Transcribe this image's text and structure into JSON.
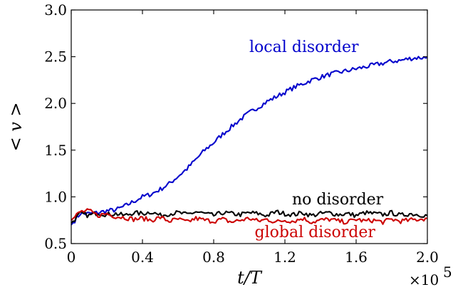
{
  "chart_data": {
    "type": "line",
    "xlabel": "t/T",
    "ylabel": "< v >",
    "x_multiplier_label": "×10",
    "x_multiplier_exp": "5",
    "xlim": [
      0,
      2.0
    ],
    "ylim": [
      0.5,
      3.0
    ],
    "xticks": [
      0,
      0.4,
      0.8,
      1.2,
      1.6,
      2.0
    ],
    "xtick_labels": [
      "0",
      "0.4",
      "0.8",
      "1.2",
      "1.6",
      "2.0"
    ],
    "yticks": [
      0.5,
      1.0,
      1.5,
      2.0,
      2.5,
      3.0
    ],
    "ytick_labels": [
      "0.5",
      "1.0",
      "1.5",
      "2.0",
      "2.5",
      "3.0"
    ],
    "grid": false,
    "legend": "inline labels",
    "series": [
      {
        "name": "local disorder",
        "color": "#0000cc",
        "label_anchor": [
          1.0,
          2.55
        ],
        "x": [
          0,
          0.05,
          0.1,
          0.15,
          0.2,
          0.25,
          0.3,
          0.35,
          0.4,
          0.45,
          0.5,
          0.55,
          0.6,
          0.65,
          0.7,
          0.75,
          0.8,
          0.85,
          0.9,
          0.95,
          1.0,
          1.05,
          1.1,
          1.15,
          1.2,
          1.25,
          1.3,
          1.35,
          1.4,
          1.45,
          1.5,
          1.55,
          1.6,
          1.65,
          1.7,
          1.75,
          1.8,
          1.85,
          1.9,
          1.95,
          2.0
        ],
        "y": [
          0.7,
          0.82,
          0.82,
          0.83,
          0.85,
          0.86,
          0.9,
          0.95,
          1.0,
          1.03,
          1.08,
          1.14,
          1.22,
          1.3,
          1.4,
          1.5,
          1.58,
          1.67,
          1.75,
          1.83,
          1.9,
          1.96,
          2.02,
          2.07,
          2.12,
          2.17,
          2.21,
          2.25,
          2.28,
          2.31,
          2.33,
          2.35,
          2.37,
          2.39,
          2.41,
          2.43,
          2.45,
          2.46,
          2.48,
          2.49,
          2.49
        ]
      },
      {
        "name": "no disorder",
        "color": "#000000",
        "label_anchor": [
          1.24,
          0.92
        ],
        "x": [
          0,
          0.05,
          0.1,
          0.15,
          0.2,
          0.25,
          0.3,
          0.35,
          0.4,
          0.45,
          0.5,
          0.55,
          0.6,
          0.65,
          0.7,
          0.75,
          0.8,
          0.85,
          0.9,
          0.95,
          1.0,
          1.05,
          1.1,
          1.15,
          1.2,
          1.25,
          1.3,
          1.35,
          1.4,
          1.45,
          1.5,
          1.55,
          1.6,
          1.65,
          1.7,
          1.75,
          1.8,
          1.85,
          1.9,
          1.95,
          2.0
        ],
        "y": [
          0.72,
          0.82,
          0.8,
          0.83,
          0.81,
          0.82,
          0.8,
          0.83,
          0.82,
          0.84,
          0.8,
          0.82,
          0.83,
          0.81,
          0.84,
          0.82,
          0.8,
          0.83,
          0.82,
          0.81,
          0.83,
          0.82,
          0.8,
          0.84,
          0.82,
          0.81,
          0.83,
          0.8,
          0.82,
          0.83,
          0.81,
          0.82,
          0.8,
          0.83,
          0.82,
          0.81,
          0.83,
          0.8,
          0.82,
          0.81,
          0.8
        ]
      },
      {
        "name": "global disorder",
        "color": "#cc0000",
        "label_anchor": [
          1.03,
          0.57
        ],
        "x": [
          0,
          0.05,
          0.1,
          0.15,
          0.2,
          0.25,
          0.3,
          0.35,
          0.4,
          0.45,
          0.5,
          0.55,
          0.6,
          0.65,
          0.7,
          0.75,
          0.8,
          0.85,
          0.9,
          0.95,
          1.0,
          1.05,
          1.1,
          1.15,
          1.2,
          1.25,
          1.3,
          1.35,
          1.4,
          1.45,
          1.5,
          1.55,
          1.6,
          1.65,
          1.7,
          1.75,
          1.8,
          1.85,
          1.9,
          1.95,
          2.0
        ],
        "y": [
          0.75,
          0.84,
          0.85,
          0.8,
          0.82,
          0.79,
          0.78,
          0.76,
          0.77,
          0.75,
          0.78,
          0.74,
          0.76,
          0.73,
          0.77,
          0.75,
          0.74,
          0.76,
          0.73,
          0.75,
          0.77,
          0.74,
          0.76,
          0.73,
          0.75,
          0.74,
          0.77,
          0.73,
          0.75,
          0.76,
          0.74,
          0.73,
          0.76,
          0.74,
          0.75,
          0.73,
          0.76,
          0.74,
          0.75,
          0.76,
          0.77
        ]
      }
    ]
  }
}
